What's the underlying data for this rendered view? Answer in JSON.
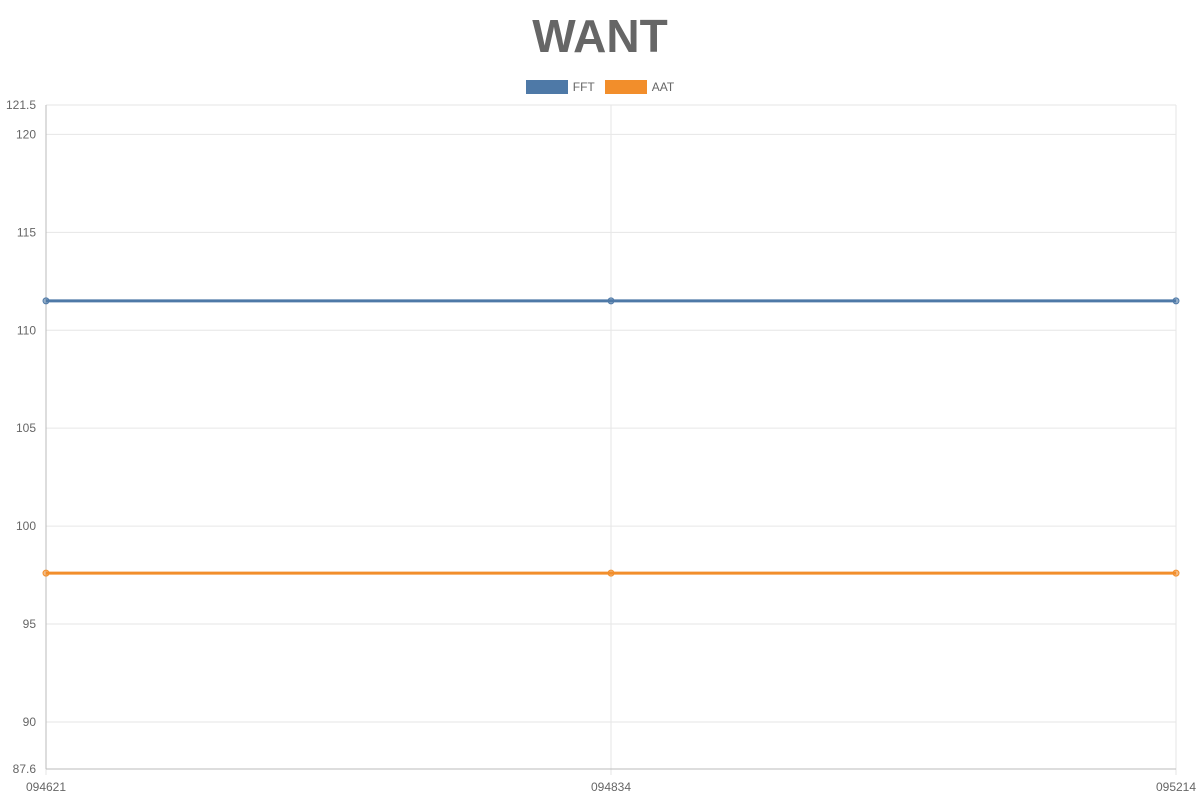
{
  "chart_data": {
    "type": "line",
    "title": "WANT",
    "xlabel": "",
    "ylabel": "",
    "categories": [
      "094621",
      "094834",
      "095214"
    ],
    "series": [
      {
        "name": "FFT",
        "values": [
          111.5,
          111.5,
          111.5
        ],
        "color": "#4e79a7"
      },
      {
        "name": "AAT",
        "values": [
          97.6,
          97.6,
          97.6
        ],
        "color": "#f28e2b"
      }
    ],
    "ylim": [
      87.6,
      121.5
    ],
    "yticks": [
      87.6,
      90,
      95,
      100,
      105,
      110,
      115,
      120,
      121.5
    ],
    "grid": true,
    "legend_position": "top-center"
  }
}
